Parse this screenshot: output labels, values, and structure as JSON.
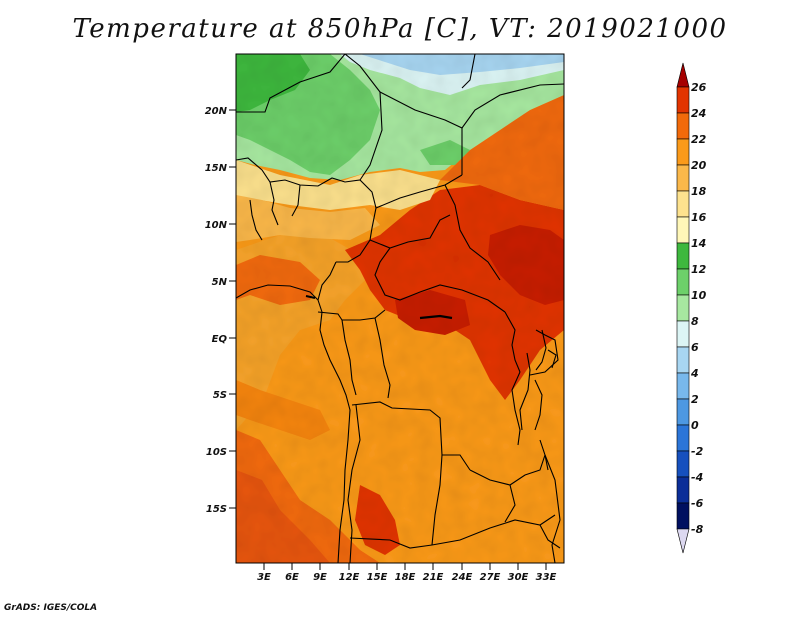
{
  "title": "Temperature at 850hPa [C], VT: 2019021000",
  "credit": "GrADS: IGES/COLA",
  "map": {
    "lat_labels": [
      "20N",
      "15N",
      "10N",
      "5N",
      "EQ",
      "5S",
      "10S",
      "15S"
    ],
    "lon_labels": [
      "3E",
      "6E",
      "9E",
      "12E",
      "15E",
      "18E",
      "21E",
      "24E",
      "27E",
      "30E",
      "33E"
    ]
  },
  "colorbar": {
    "labels": [
      "26",
      "24",
      "22",
      "20",
      "18",
      "16",
      "14",
      "12",
      "10",
      "8",
      "6",
      "4",
      "2",
      "0",
      "-2",
      "-4",
      "-6",
      "-8"
    ],
    "colors": [
      "#a50000",
      "#e23400",
      "#f26a0a",
      "#fb9a1a",
      "#fbb84a",
      "#fde28e",
      "#fff7b8",
      "#3eb83e",
      "#6dd06a",
      "#a7e8a0",
      "#dcf5f5",
      "#a8d6f2",
      "#78b8ec",
      "#4d98e2",
      "#2b75d8",
      "#1650be",
      "#0b2e98",
      "#001060",
      "#dcd8f0"
    ]
  }
}
